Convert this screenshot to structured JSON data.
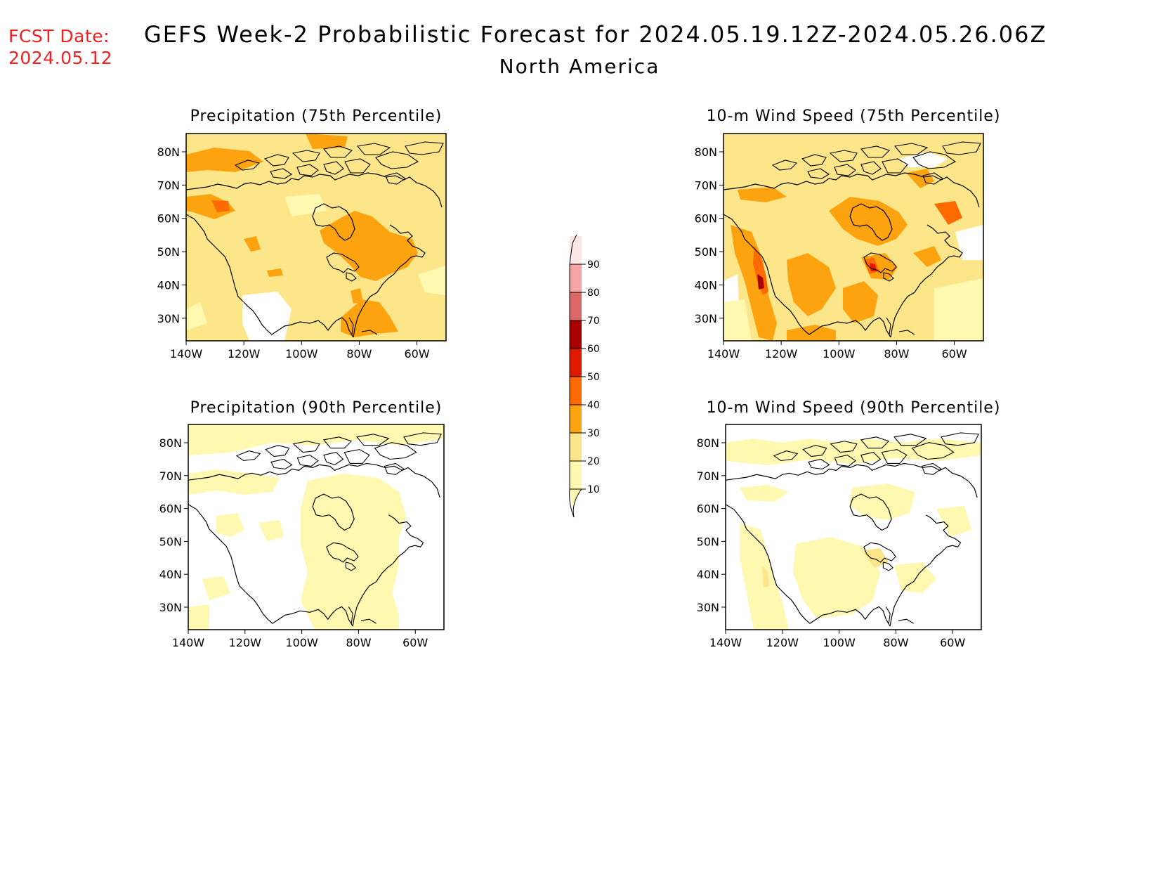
{
  "header": {
    "fcst_label": "FCST Date:",
    "fcst_date": "2024.05.12",
    "title": "GEFS Week-2 Probabilistic Forecast for 2024.05.19.12Z-2024.05.26.06Z",
    "subtitle": "North America"
  },
  "panels": [
    {
      "id": "precip-75",
      "title": "Precipitation (75th Percentile)"
    },
    {
      "id": "wind-75",
      "title": "10-m Wind Speed (75th Percentile)"
    },
    {
      "id": "precip-90",
      "title": "Precipitation (90th Percentile)"
    },
    {
      "id": "wind-90",
      "title": "10-m Wind Speed (90th Percentile)"
    }
  ],
  "axes": {
    "lat_labels": [
      "80N",
      "70N",
      "60N",
      "50N",
      "40N",
      "30N"
    ],
    "lon_labels": [
      "140W",
      "120W",
      "100W",
      "80W",
      "60W"
    ]
  },
  "colorbar": {
    "levels": [
      "10",
      "20",
      "30",
      "40",
      "50",
      "60",
      "70",
      "80",
      "90"
    ],
    "colors": [
      "#fff8b0",
      "#fde68a",
      "#fca30f",
      "#fd6a00",
      "#e01a00",
      "#a80000",
      "#dd6868",
      "#f4a4a4",
      "#fde6e6"
    ]
  }
}
